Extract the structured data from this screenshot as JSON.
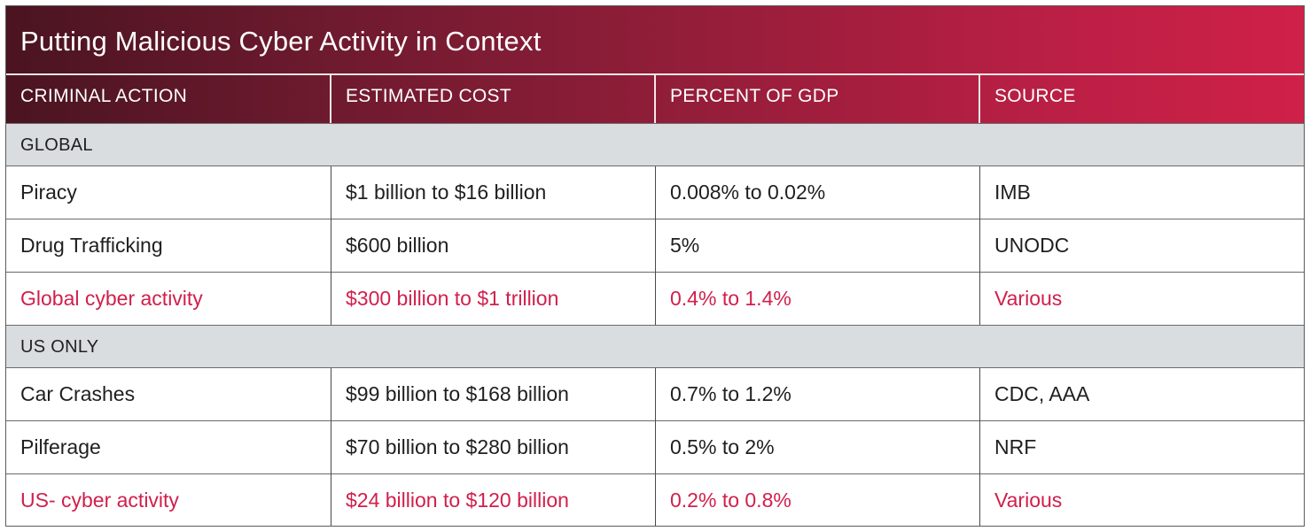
{
  "table": {
    "title": "Putting Malicious Cyber Activity in Context",
    "columns": [
      "CRIMINAL ACTION",
      "ESTIMATED COST",
      "PERCENT OF GDP",
      "SOURCE"
    ],
    "sections": [
      {
        "label": "GLOBAL",
        "rows": [
          {
            "action": "Piracy",
            "cost": "$1 billion to $16 billion",
            "gdp": "0.008% to 0.02%",
            "source": "IMB",
            "highlight": false
          },
          {
            "action": "Drug Trafficking",
            "cost": "$600 billion",
            "gdp": "5%",
            "source": "UNODC",
            "highlight": false
          },
          {
            "action": "Global cyber activity",
            "cost": "$300 billion to $1 trillion",
            "gdp": "0.4% to 1.4%",
            "source": "Various",
            "highlight": true
          }
        ]
      },
      {
        "label": "US ONLY",
        "rows": [
          {
            "action": "Car Crashes",
            "cost": "$99 billion to $168 billion",
            "gdp": "0.7% to 1.2%",
            "source": "CDC, AAA",
            "highlight": false
          },
          {
            "action": "Pilferage",
            "cost": "$70 billion to $280 billion",
            "gdp": "0.5% to 2%",
            "source": "NRF",
            "highlight": false
          },
          {
            "action": "US- cyber activity",
            "cost": "$24 billion to $120 billion",
            "gdp": "0.2% to 0.8%",
            "source": "Various",
            "highlight": true
          }
        ]
      }
    ],
    "colors": {
      "header_gradient_start": "#4a1420",
      "header_gradient_end": "#cf2048",
      "highlight_text": "#d11f4b",
      "section_background": "#d9dde0",
      "body_text": "#1f1f1f"
    }
  }
}
